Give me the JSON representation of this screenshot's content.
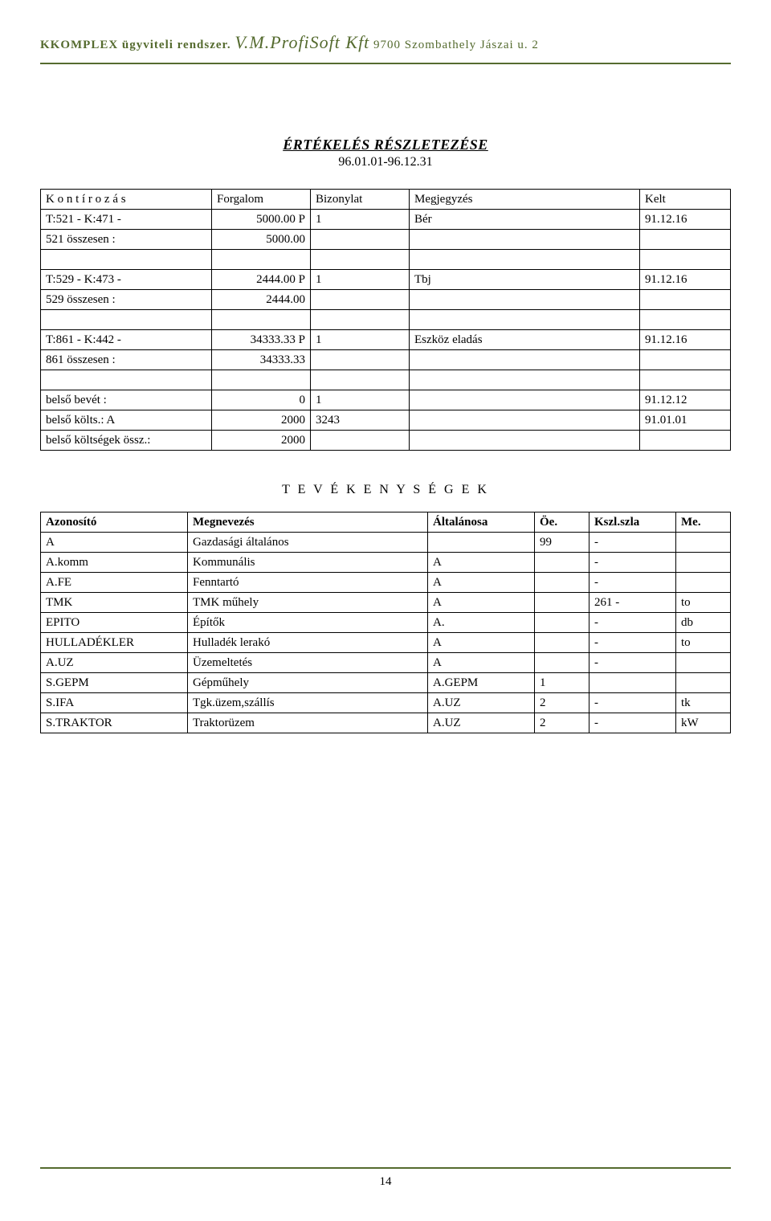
{
  "header": {
    "brand": "KKOMPLEX ügyviteli rendszer.",
    "company": "V.M.ProfiSoft Kft",
    "address": "9700 Szombathely Jászai u. 2"
  },
  "title": "ÉRTÉKELÉS RÉSZLETEZÉSE",
  "date_range": "96.01.01-96.12.31",
  "t1": {
    "columns": [
      "K o n t í r o z á s",
      "Forgalom",
      "Bizonylat",
      "Megjegyzés",
      "Kelt"
    ],
    "r1": [
      "T:521  -   K:471  -",
      "5000.00 P",
      "1",
      "Bér",
      "91.12.16"
    ],
    "r2": [
      "521   összesen :",
      "5000.00",
      "",
      "",
      ""
    ],
    "r3": [
      "T:529  -   K:473  -",
      "2444.00 P",
      "1",
      "Tbj",
      "91.12.16"
    ],
    "r4": [
      "529   összesen :",
      "2444.00",
      "",
      "",
      ""
    ],
    "r5": [
      "T:861  -   K:442  -",
      "34333.33 P",
      "1",
      "Eszköz eladás",
      "91.12.16"
    ],
    "r6": [
      "861   összesen :",
      "34333.33",
      "",
      "",
      ""
    ],
    "r7": [
      "belső bevét :",
      "0",
      "1",
      "",
      "91.12.12"
    ],
    "r8": [
      "belső költs.: A",
      "2000",
      "3243",
      "",
      "91.01.01"
    ],
    "r9": [
      "belső költségek össz.:",
      "2000",
      "",
      "",
      ""
    ]
  },
  "section_title": "T E V É K E N Y S É G E K",
  "t2": {
    "columns": [
      "Azonosító",
      "Megnevezés",
      "Általánosa",
      "Öe.",
      "Kszl.szla",
      "Me."
    ],
    "rows": [
      [
        "A",
        "Gazdasági általános",
        "",
        "99",
        "-",
        ""
      ],
      [
        "A.komm",
        "Kommunális",
        "A",
        "",
        "-",
        ""
      ],
      [
        "A.FE",
        "Fenntartó",
        "A",
        "",
        "-",
        ""
      ],
      [
        "TMK",
        "TMK műhely",
        "A",
        "",
        "261 -",
        "to"
      ],
      [
        "EPITO",
        "Építők",
        "A.",
        "",
        "-",
        "db"
      ],
      [
        "HULLADÉKLER",
        "Hulladék lerakó",
        "A",
        "",
        "-",
        "to"
      ],
      [
        "A.UZ",
        "Üzemeltetés",
        "A",
        "",
        "-",
        ""
      ],
      [
        "S.GEPM",
        "Gépműhely",
        "A.GEPM",
        "1",
        "",
        ""
      ],
      [
        "S.IFA",
        "Tgk.üzem,szállís",
        "A.UZ",
        "2",
        "-",
        "tk"
      ],
      [
        "S.TRAKTOR",
        "Traktorüzem",
        "A.UZ",
        "2",
        "-",
        "kW"
      ]
    ]
  },
  "page_number": "14"
}
